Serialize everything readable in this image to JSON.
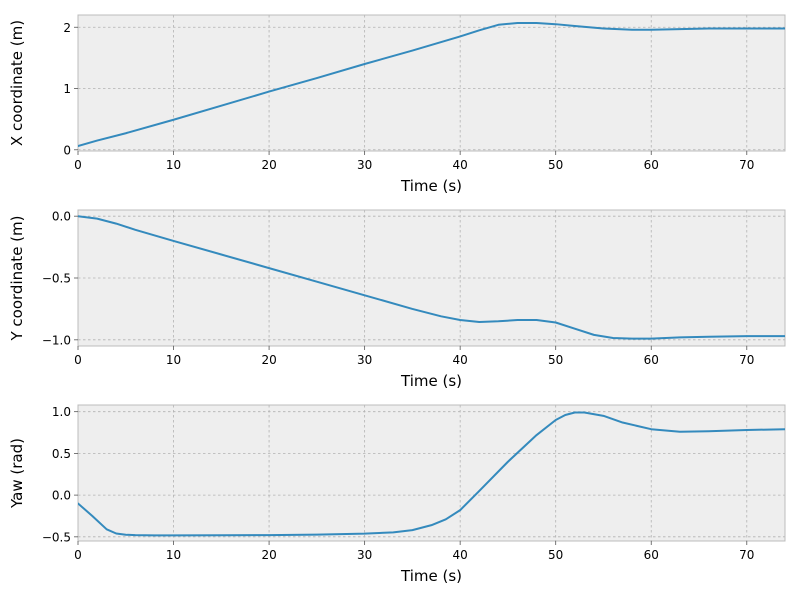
{
  "chart_data": [
    {
      "type": "line",
      "xlabel": "Time (s)",
      "ylabel": "X coordinate (m)",
      "xlim": [
        0,
        74
      ],
      "ylim": [
        -0.02,
        2.2
      ],
      "xticks": [
        0,
        10,
        20,
        30,
        40,
        50,
        60,
        70
      ],
      "xtick_labels": [
        "0",
        "10",
        "20",
        "30",
        "40",
        "50",
        "60",
        "70"
      ],
      "yticks": [
        0,
        1,
        2
      ],
      "ytick_labels": [
        "0",
        "1",
        "2"
      ],
      "grid": true,
      "series": [
        {
          "color": "#348ABD",
          "x": [
            0,
            2,
            5,
            10,
            15,
            20,
            25,
            30,
            35,
            40,
            42,
            44,
            46,
            48,
            50,
            52,
            55,
            58,
            60,
            63,
            66,
            70,
            74
          ],
          "y": [
            0.06,
            0.15,
            0.27,
            0.49,
            0.72,
            0.95,
            1.17,
            1.4,
            1.62,
            1.85,
            1.95,
            2.04,
            2.07,
            2.07,
            2.05,
            2.02,
            1.98,
            1.96,
            1.96,
            1.97,
            1.98,
            1.98,
            1.98
          ]
        }
      ]
    },
    {
      "type": "line",
      "xlabel": "Time (s)",
      "ylabel": "Y coordinate (m)",
      "xlim": [
        0,
        74
      ],
      "ylim": [
        -1.05,
        0.05
      ],
      "xticks": [
        0,
        10,
        20,
        30,
        40,
        50,
        60,
        70
      ],
      "xtick_labels": [
        "0",
        "10",
        "20",
        "30",
        "40",
        "50",
        "60",
        "70"
      ],
      "yticks": [
        0,
        -0.5,
        -1
      ],
      "ytick_labels": [
        "0.0",
        "−0.5",
        "−1.0"
      ],
      "grid": true,
      "series": [
        {
          "color": "#348ABD",
          "x": [
            0,
            2,
            4,
            6,
            10,
            15,
            20,
            25,
            30,
            35,
            38,
            40,
            42,
            44,
            46,
            48,
            50,
            52,
            54,
            56,
            58,
            60,
            63,
            66,
            70,
            74
          ],
          "y": [
            0.0,
            -0.02,
            -0.06,
            -0.11,
            -0.2,
            -0.31,
            -0.42,
            -0.53,
            -0.64,
            -0.75,
            -0.81,
            -0.84,
            -0.856,
            -0.85,
            -0.84,
            -0.84,
            -0.86,
            -0.91,
            -0.96,
            -0.985,
            -0.99,
            -0.99,
            -0.98,
            -0.975,
            -0.97,
            -0.97
          ]
        }
      ]
    },
    {
      "type": "line",
      "xlabel": "Time (s)",
      "ylabel": "Yaw (rad)",
      "xlim": [
        0,
        74
      ],
      "ylim": [
        -0.55,
        1.08
      ],
      "xticks": [
        0,
        10,
        20,
        30,
        40,
        50,
        60,
        70
      ],
      "xtick_labels": [
        "0",
        "10",
        "20",
        "30",
        "40",
        "50",
        "60",
        "70"
      ],
      "yticks": [
        1.0,
        0.5,
        0,
        -0.5
      ],
      "ytick_labels": [
        "1.0",
        "0.5",
        "0.0",
        "−0.5"
      ],
      "grid": true,
      "series": [
        {
          "color": "#348ABD",
          "x": [
            0,
            1.5,
            3,
            4,
            5,
            6,
            8,
            10,
            15,
            20,
            25,
            30,
            33,
            35,
            37,
            38.5,
            40,
            42,
            45,
            48,
            50,
            51,
            52,
            53,
            55,
            57,
            60,
            63,
            66,
            70,
            74
          ],
          "y": [
            -0.1,
            -0.25,
            -0.41,
            -0.46,
            -0.475,
            -0.48,
            -0.482,
            -0.482,
            -0.481,
            -0.479,
            -0.474,
            -0.462,
            -0.446,
            -0.42,
            -0.36,
            -0.29,
            -0.18,
            0.05,
            0.4,
            0.72,
            0.9,
            0.96,
            0.99,
            0.99,
            0.95,
            0.87,
            0.79,
            0.76,
            0.765,
            0.78,
            0.79
          ]
        }
      ]
    }
  ]
}
